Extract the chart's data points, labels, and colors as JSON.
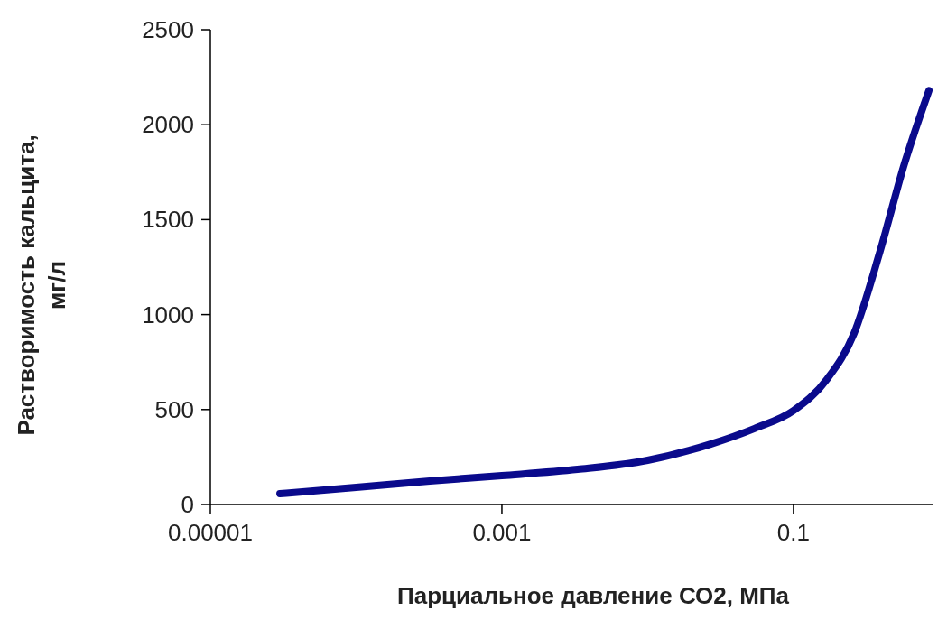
{
  "chart_data": {
    "type": "line",
    "xlabel": "Парциальное давление СО2, МПа",
    "ylabel": "Растворимость кальцита, мг/л",
    "log": "x",
    "xlim": [
      1e-05,
      0.9
    ],
    "ylim": [
      0,
      2500
    ],
    "xticks": [
      {
        "value": 1e-05,
        "label": "0.00001"
      },
      {
        "value": 0.001,
        "label": "0.001"
      },
      {
        "value": 0.1,
        "label": "0.1"
      }
    ],
    "yticks": [
      0,
      500,
      1000,
      1500,
      2000,
      2500
    ],
    "grid": false,
    "marker": "none",
    "line_style": "solid",
    "series": [
      {
        "color": "#0a0a8c",
        "x": [
          3e-05,
          0.0001,
          0.00032,
          0.001,
          0.0033,
          0.01,
          0.027,
          0.054,
          0.1,
          0.17,
          0.26,
          0.39,
          0.58,
          0.85
        ],
        "values": [
          57,
          90,
          124,
          152,
          185,
          233,
          318,
          400,
          494,
          660,
          900,
          1326,
          1800,
          2180
        ]
      }
    ]
  }
}
